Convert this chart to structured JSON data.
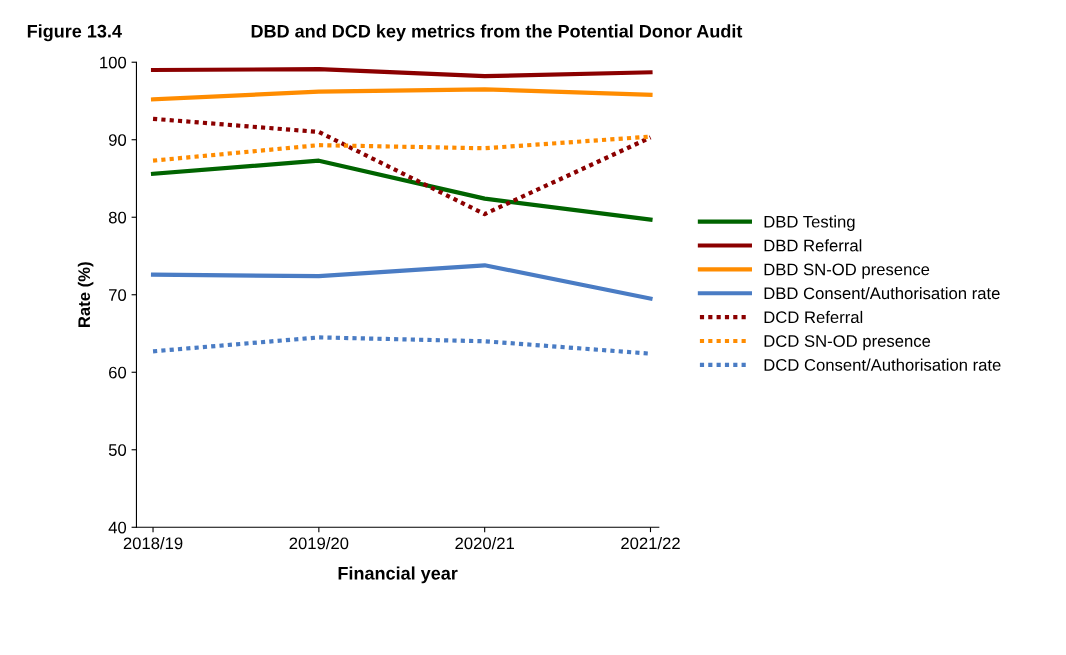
{
  "chart_data": {
    "type": "line",
    "title": "DBD and DCD key metrics from the Potential Donor Audit",
    "annotations": [
      "Figure 13.4"
    ],
    "xlabel": "Financial year",
    "ylabel": "Rate (%)",
    "categories": [
      "2018/19",
      "2019/20",
      "2020/21",
      "2021/22"
    ],
    "ylim": [
      40,
      100
    ],
    "yticks": [
      40,
      50,
      60,
      70,
      80,
      90,
      100
    ],
    "grid": false,
    "legend": "right",
    "marker": "none",
    "series": [
      {
        "name": "DBD Testing",
        "color": "#006400",
        "line_style": "solid",
        "values": [
          85.6,
          87.3,
          82.4,
          79.7
        ]
      },
      {
        "name": "DBD Referral",
        "color": "#8b0000",
        "line_style": "solid",
        "values": [
          99.0,
          99.1,
          98.2,
          98.7
        ]
      },
      {
        "name": "DBD SN-OD presence",
        "color": "#ff8c00",
        "line_style": "solid",
        "values": [
          95.2,
          96.2,
          96.5,
          95.8
        ]
      },
      {
        "name": "DBD Consent/Authorisation rate",
        "color": "#4a7cc4",
        "line_style": "solid",
        "values": [
          72.6,
          72.4,
          73.8,
          69.5
        ]
      },
      {
        "name": "DCD Referral",
        "color": "#8b0000",
        "line_style": "dotted",
        "values": [
          92.7,
          91.0,
          80.4,
          90.3
        ]
      },
      {
        "name": "DCD SN-OD presence",
        "color": "#ff8c00",
        "line_style": "dotted",
        "values": [
          87.3,
          89.3,
          88.9,
          90.4
        ]
      },
      {
        "name": "DCD Consent/Authorisation rate",
        "color": "#4a7cc4",
        "line_style": "dotted",
        "values": [
          62.7,
          64.5,
          64.0,
          62.4
        ]
      }
    ]
  }
}
